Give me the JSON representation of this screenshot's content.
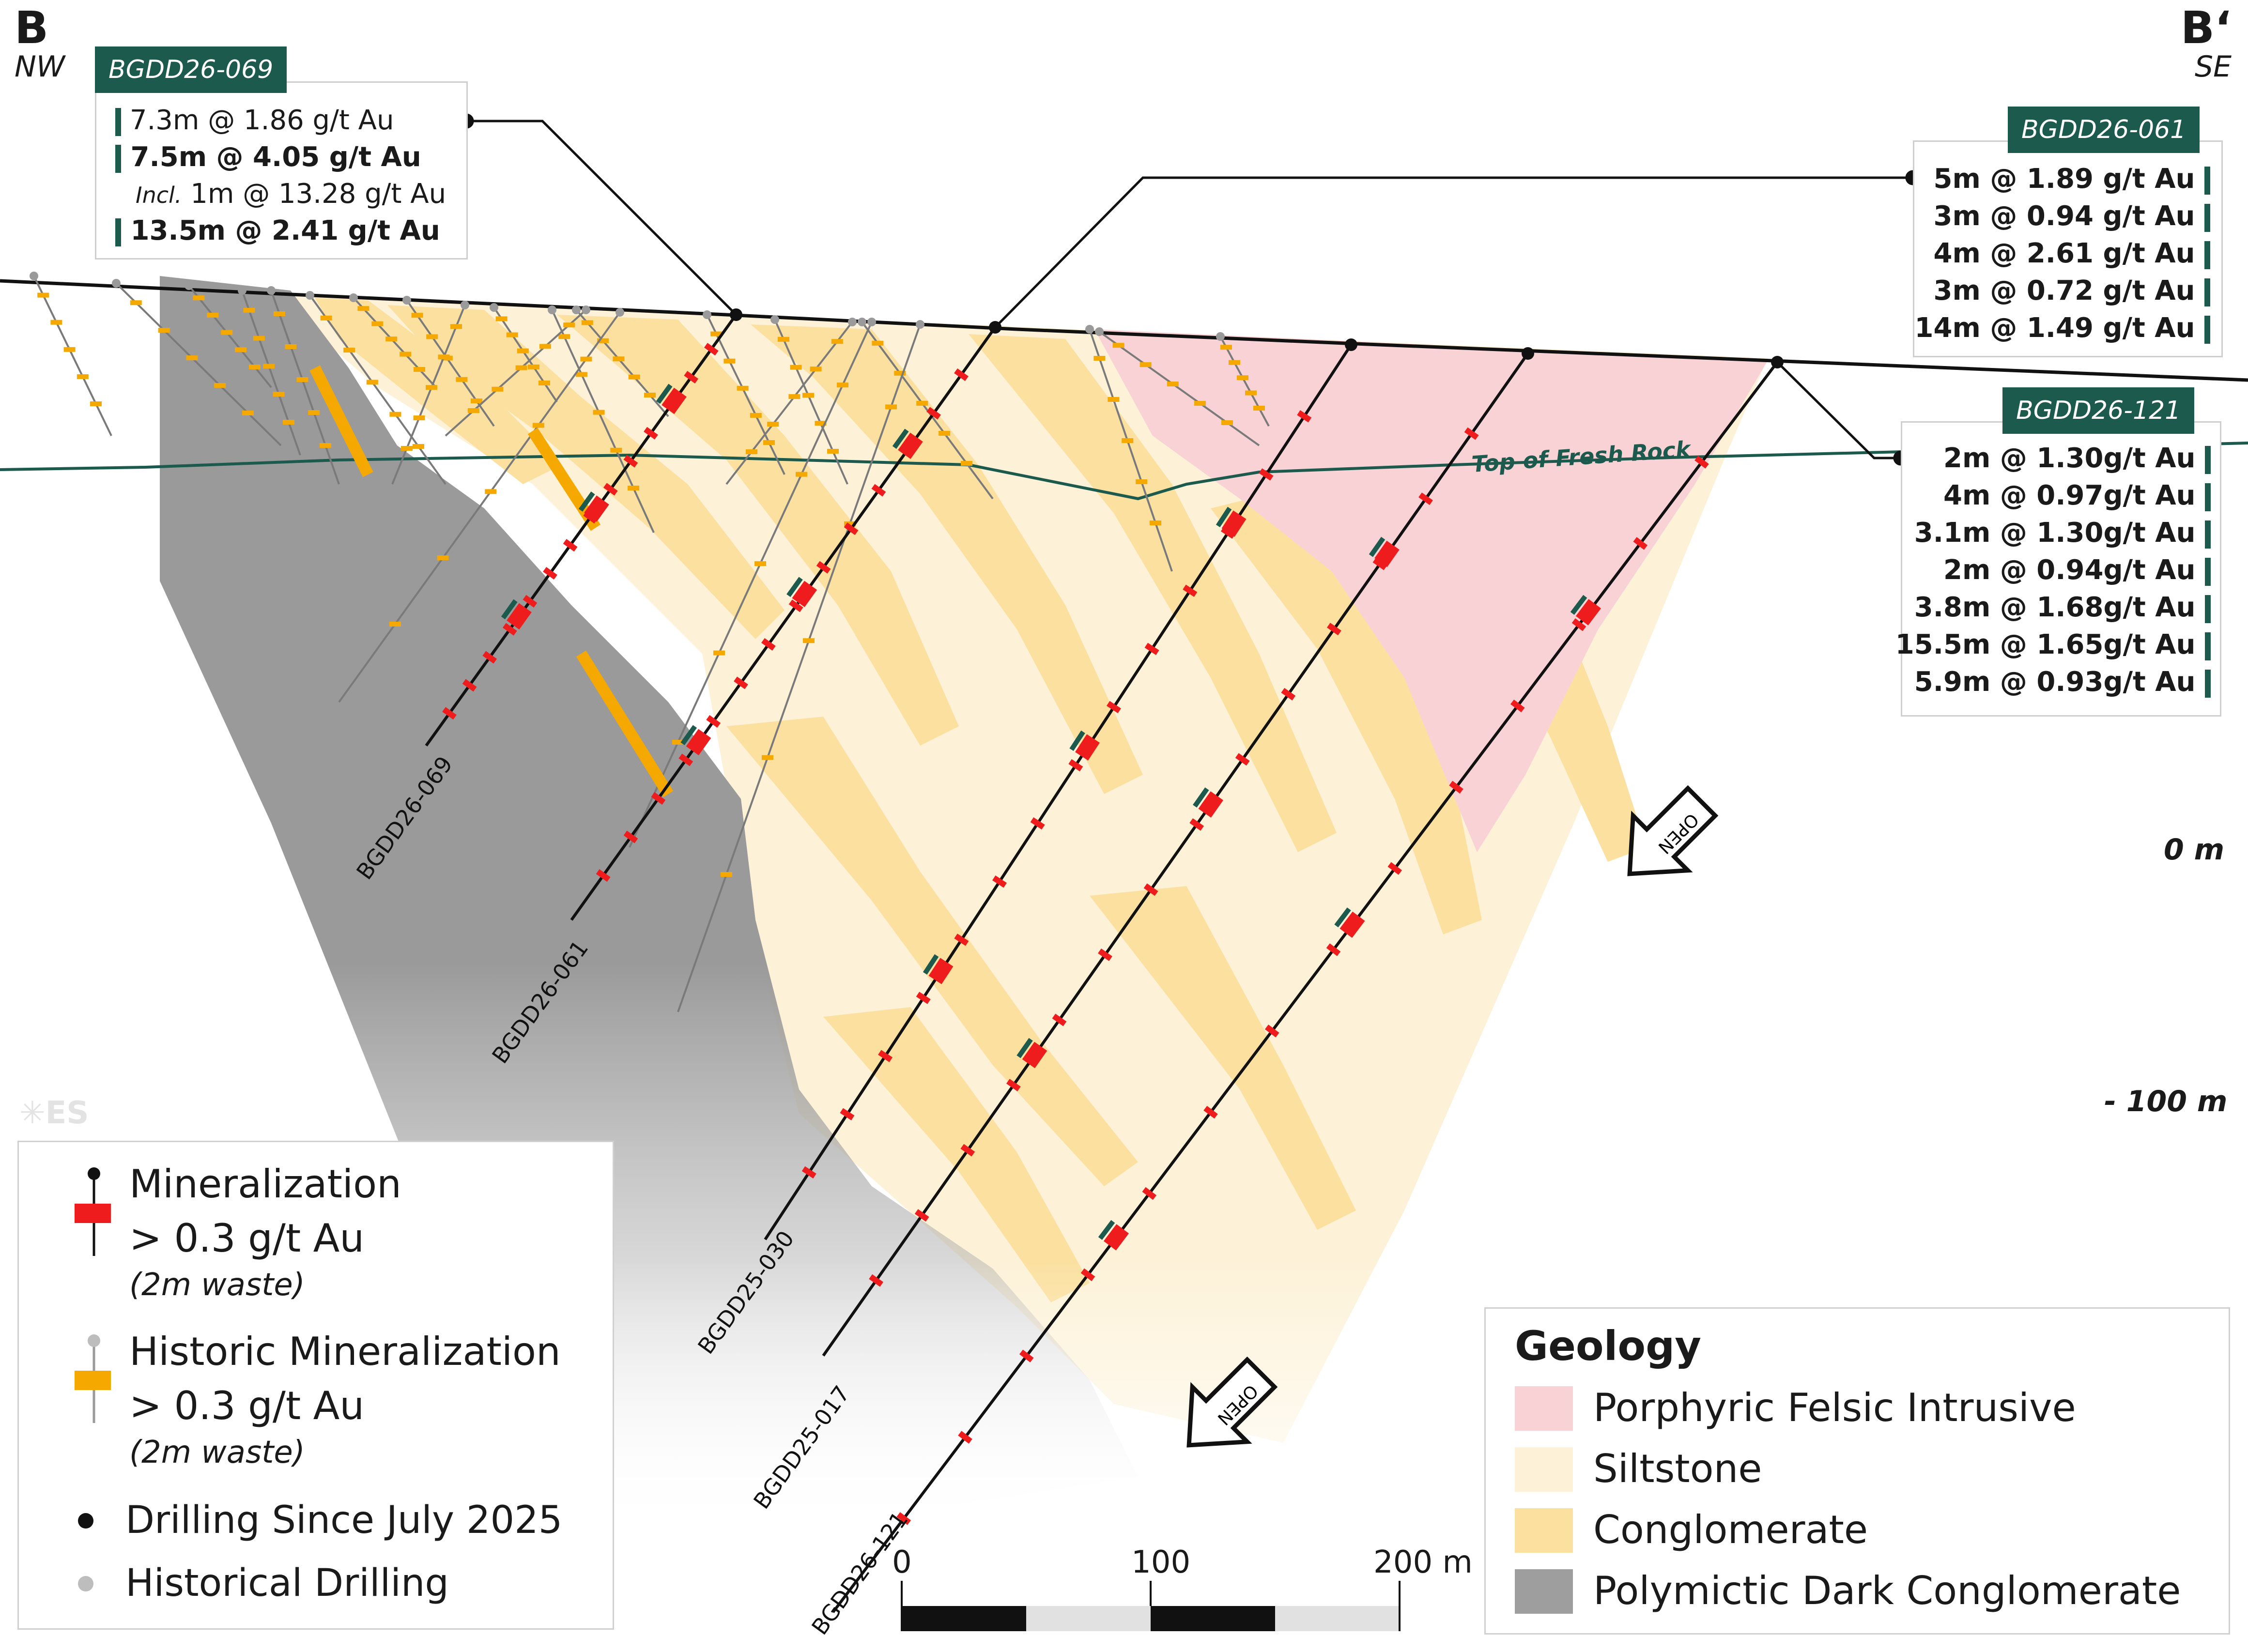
{
  "section": {
    "start_label": "B",
    "start_dir": "NW",
    "end_label": "B‘",
    "end_dir": "SE"
  },
  "callouts": [
    {
      "hole": "BGDD26-069",
      "rows": [
        {
          "text": "7.3m @ 1.86 g/t Au",
          "bold": false
        },
        {
          "text": "7.5m @ 4.05 g/t Au",
          "bold": true
        },
        {
          "prefix": "Incl.",
          "text": "1m @ 13.28 g/t Au",
          "bold": false
        },
        {
          "text": "13.5m @ 2.41 g/t Au",
          "bold": true
        }
      ]
    },
    {
      "hole": "BGDD26-061",
      "rows": [
        {
          "text": "5m @ 1.89 g/t Au"
        },
        {
          "text": "3m @ 0.94 g/t Au"
        },
        {
          "text": "4m @ 2.61 g/t Au"
        },
        {
          "text": "3m @ 0.72 g/t Au"
        },
        {
          "text": "14m @ 1.49 g/t Au"
        }
      ]
    },
    {
      "hole": "BGDD26-121",
      "rows": [
        {
          "text": "2m @ 1.30g/t Au"
        },
        {
          "text": "4m @ 0.97g/t Au"
        },
        {
          "text": "3.1m @ 1.30g/t Au"
        },
        {
          "text": "2m @ 0.94g/t Au"
        },
        {
          "text": "3.8m @ 1.68g/t Au"
        },
        {
          "text": "15.5m @ 1.65g/t Au"
        },
        {
          "text": "5.9m @ 0.93g/t Au"
        }
      ]
    }
  ],
  "fresh_rock_label": "Top of Fresh Rock",
  "hole_labels": [
    "BGDD26-069",
    "BGDD26-061",
    "BGDD25-030",
    "BGDD25-017",
    "BGDD26-121"
  ],
  "open_label": "OPEN",
  "elevations": [
    "0 m",
    "- 100 m"
  ],
  "scale": {
    "ticks": [
      "0",
      "100",
      "200 m"
    ]
  },
  "logo": "ES",
  "legend": {
    "mineralization_title": "Mineralization",
    "mineralization_grade": "> 0.3 g/t Au",
    "mineralization_note": "(2m waste)",
    "historic_title": "Historic Mineralization",
    "historic_grade": "> 0.3 g/t Au",
    "historic_note": "(2m waste)",
    "drilling_new": "Drilling Since July 2025",
    "drilling_hist": "Historical Drilling"
  },
  "geology": {
    "title": "Geology",
    "units": [
      {
        "name": "Porphyric Felsic Intrusive",
        "color": "#f8d2d5"
      },
      {
        "name": "Siltstone",
        "color": "#fdf2d8"
      },
      {
        "name": "Conglomerate",
        "color": "#fbe0a0"
      },
      {
        "name": "Polymictic Dark Conglomerate",
        "color": "#9e9e9e"
      }
    ]
  },
  "colors": {
    "brand": "#1d5a4e",
    "mineralization": "#ee1c1c",
    "historic": "#f5a800",
    "new_collar": "#111111",
    "hist_collar": "#9a9a9a"
  }
}
